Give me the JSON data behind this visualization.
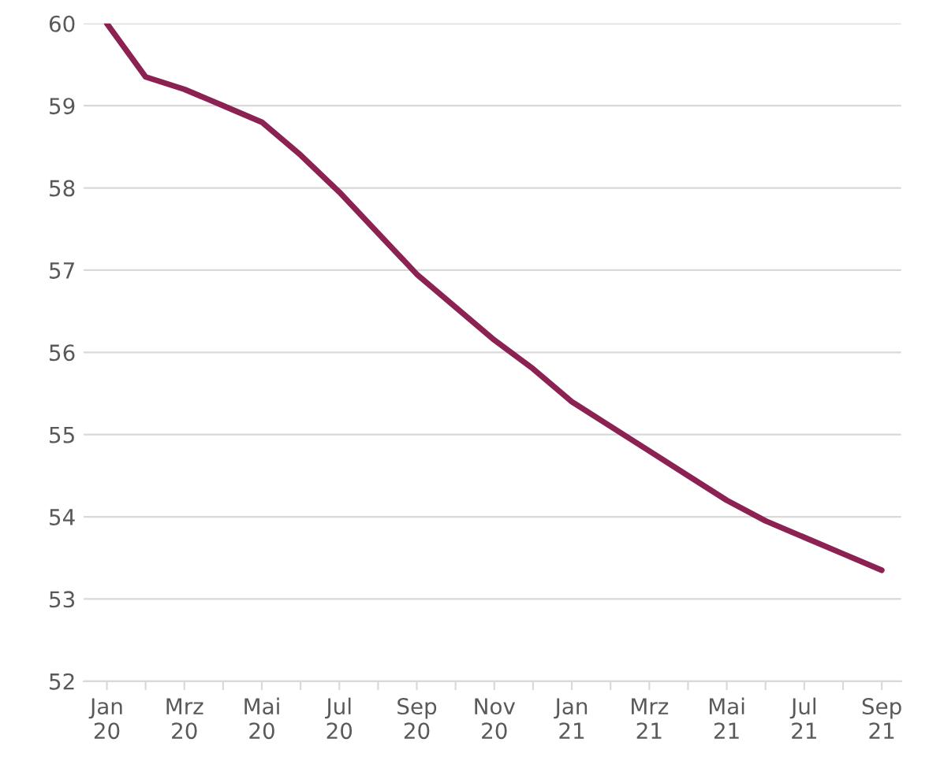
{
  "chart_data": {
    "type": "line",
    "categories": [
      "Jan\n20",
      null,
      "Mrz\n20",
      null,
      "Mai\n20",
      null,
      "Jul\n20",
      null,
      "Sep\n20",
      null,
      "Nov\n20",
      null,
      "Jan\n21",
      null,
      "Mrz\n21",
      null,
      "Mai\n21",
      null,
      "Jul\n21",
      null,
      "Sep\n21"
    ],
    "series": [
      {
        "color": "#8b2252",
        "values": [
          60.0,
          59.35,
          59.2,
          59.0,
          58.8,
          58.4,
          57.95,
          57.45,
          56.95,
          56.55,
          56.15,
          55.8,
          55.4,
          55.1,
          54.8,
          54.5,
          54.2,
          53.95,
          53.75,
          53.55,
          53.35
        ]
      }
    ],
    "ylim": [
      52,
      60
    ],
    "yticks": [
      52,
      53,
      54,
      55,
      56,
      57,
      58,
      59,
      60
    ],
    "grid": "y",
    "marker": "none",
    "line_style": "solid"
  }
}
